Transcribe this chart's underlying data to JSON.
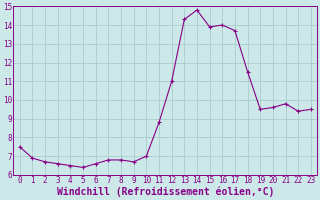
{
  "x": [
    0,
    1,
    2,
    3,
    4,
    5,
    6,
    7,
    8,
    9,
    10,
    11,
    12,
    13,
    14,
    15,
    16,
    17,
    18,
    19,
    20,
    21,
    22,
    23
  ],
  "y": [
    7.5,
    6.9,
    6.7,
    6.6,
    6.5,
    6.4,
    6.6,
    6.8,
    6.8,
    6.7,
    7.0,
    8.8,
    11.0,
    14.3,
    14.8,
    13.9,
    14.0,
    13.7,
    11.5,
    9.5,
    9.6,
    9.8,
    9.4,
    9.5
  ],
  "line_color": "#880088",
  "marker": "P",
  "marker_size": 2.5,
  "bg_color": "#cce8e8",
  "grid_color": "#aacccc",
  "xlabel": "Windchill (Refroidissement éolien,°C)",
  "xlim": [
    -0.5,
    23.5
  ],
  "ylim": [
    6,
    15
  ],
  "yticks": [
    6,
    7,
    8,
    9,
    10,
    11,
    12,
    13,
    14,
    15
  ],
  "xticks": [
    0,
    1,
    2,
    3,
    4,
    5,
    6,
    7,
    8,
    9,
    10,
    11,
    12,
    13,
    14,
    15,
    16,
    17,
    18,
    19,
    20,
    21,
    22,
    23
  ],
  "tick_label_fontsize": 5.5,
  "xlabel_fontsize": 7.0
}
